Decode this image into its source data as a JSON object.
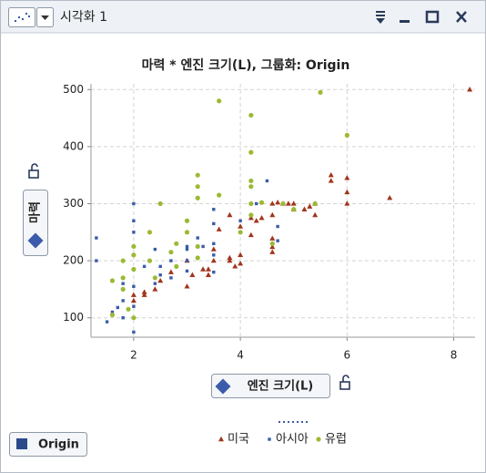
{
  "window": {
    "title": "시각화 1"
  },
  "chart_data": {
    "type": "scatter",
    "title": "마력 * 엔진 크기(L), 그룹화: Origin",
    "x_label": "엔진 크기(L)",
    "y_label": "마력",
    "legend_title": "Origin",
    "xlim": [
      1.2,
      8.4
    ],
    "ylim": [
      66,
      510
    ],
    "xticks": [
      2,
      4,
      6,
      8
    ],
    "yticks": [
      100,
      200,
      300,
      400,
      500
    ],
    "grid": true,
    "legend": "bottom",
    "series": [
      {
        "name": "미국",
        "color": "#a2341c",
        "marker": "triangle",
        "x": [
          8.3,
          6.8,
          6,
          6,
          5.7,
          5.7,
          5.4,
          5.3,
          5.2,
          5,
          4.8,
          4.6,
          4.6,
          4.6,
          4.6,
          4.6,
          4.7,
          4.4,
          4.3,
          4.2,
          4.2,
          4,
          4,
          3.8,
          3.8,
          3.8,
          3.6,
          3.5,
          3.5,
          3.4,
          3.4,
          3.3,
          3.1,
          3,
          3,
          2.7,
          2.5,
          2.4,
          2.2,
          2.2,
          2,
          2,
          4.9,
          5.4,
          6,
          3.9,
          4,
          5
        ],
        "values": [
          500,
          310,
          345,
          300,
          350,
          340,
          300,
          295,
          290,
          300,
          300,
          300,
          280,
          239,
          224,
          215,
          302,
          275,
          270,
          275,
          245,
          260,
          210,
          280,
          205,
          200,
          255,
          220,
          200,
          185,
          175,
          185,
          175,
          200,
          155,
          180,
          165,
          150,
          145,
          140,
          140,
          130,
          300,
          280,
          320,
          190,
          195,
          290
        ]
      },
      {
        "name": "아시아",
        "color": "#3b5bab",
        "marker": "square",
        "x": [
          1.3,
          1.3,
          1.5,
          1.6,
          1.7,
          1.8,
          1.8,
          2,
          2,
          2,
          2,
          2,
          2,
          2.2,
          2.3,
          2.4,
          2.4,
          2.5,
          2.5,
          2.7,
          2.7,
          3,
          3,
          3,
          3.3,
          3.5,
          3.5,
          3.5,
          3.5,
          3.5,
          3,
          4,
          4.3,
          4.5,
          4.7,
          4.7,
          2,
          3.2,
          1.8,
          2.5
        ],
        "values": [
          240,
          200,
          93,
          110,
          118,
          130,
          160,
          120,
          155,
          210,
          270,
          300,
          75,
          190,
          200,
          160,
          220,
          175,
          300,
          170,
          200,
          225,
          200,
          182,
          225,
          230,
          265,
          210,
          290,
          180,
          220,
          270,
          300,
          340,
          235,
          260,
          250,
          240,
          100,
          190
        ]
      },
      {
        "name": "유럽",
        "color": "#9bba33",
        "marker": "circle",
        "x": [
          1.6,
          1.8,
          1.8,
          1.8,
          1.9,
          2,
          2,
          2,
          1.6,
          2.3,
          2.3,
          2.5,
          2.7,
          2.8,
          2.8,
          3,
          3.2,
          3.2,
          3.2,
          3.2,
          3.2,
          3.6,
          3.6,
          4.2,
          4.2,
          4.2,
          4.2,
          4.2,
          4.4,
          4.2,
          4.6,
          4.8,
          5,
          5.5,
          6,
          5.4,
          2.4,
          2,
          3,
          4
        ],
        "values": [
          105,
          170,
          150,
          200,
          115,
          225,
          185,
          100,
          165,
          200,
          250,
          300,
          215,
          190,
          230,
          270,
          350,
          330,
          310,
          225,
          205,
          480,
          315,
          455,
          390,
          340,
          330,
          300,
          302,
          280,
          230,
          300,
          290,
          495,
          420,
          300,
          170,
          210,
          250,
          250
        ]
      }
    ]
  }
}
